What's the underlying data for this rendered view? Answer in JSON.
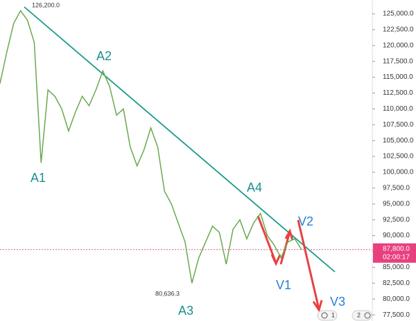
{
  "chart_data": {
    "type": "line",
    "values": [
      114000,
      119000,
      123500,
      125500,
      124000,
      120500,
      101500,
      113000,
      112000,
      110000,
      106500,
      109500,
      112000,
      110500,
      113000,
      116000,
      113500,
      109000,
      110000,
      104000,
      101000,
      103500,
      107000,
      104000,
      97000,
      95000,
      92000,
      89000,
      82500,
      86500,
      89000,
      91500,
      90500,
      85500,
      91000,
      92500,
      89500,
      92000,
      93500,
      90000,
      88500,
      86500,
      89000,
      89500,
      87800
    ],
    "color": "#6aa84f",
    "ylim": [
      76530,
      127180
    ],
    "yticks": [
      {
        "value": 77500,
        "label": "77,500.0"
      },
      {
        "value": 80000,
        "label": "80,000.0"
      },
      {
        "value": 82500,
        "label": "82,500.0"
      },
      {
        "value": 85000,
        "label": "85,000.0"
      },
      {
        "value": 87500,
        "label": "87,500.0"
      },
      {
        "value": 90000,
        "label": "90,000.0"
      },
      {
        "value": 92500,
        "label": "92,500.0"
      },
      {
        "value": 95000,
        "label": "95,000.0"
      },
      {
        "value": 97500,
        "label": "97,500.0"
      },
      {
        "value": 100000,
        "label": "100,000.0"
      },
      {
        "value": 102500,
        "label": "102,500.0"
      },
      {
        "value": 105000,
        "label": "105,000.0"
      },
      {
        "value": 107500,
        "label": "107,500.0"
      },
      {
        "value": 110000,
        "label": "110,000.0"
      },
      {
        "value": 112500,
        "label": "112,500.0"
      },
      {
        "value": 115000,
        "label": "115,000.0"
      },
      {
        "value": 117500,
        "label": "117,500.0"
      },
      {
        "value": 120000,
        "label": "120,000.0"
      },
      {
        "value": 122500,
        "label": "122,500.0"
      },
      {
        "value": 125000,
        "label": "125,000.0"
      }
    ],
    "high_label": "126,200.0",
    "low_label": "80,636.3",
    "current_price": {
      "value": 87800,
      "label": "87,800.0",
      "countdown": "02:00:17"
    },
    "annotations": [
      "A1",
      "A2",
      "A3",
      "A4",
      "V1",
      "V2",
      "V3"
    ],
    "badges": [
      "1",
      "2"
    ]
  }
}
